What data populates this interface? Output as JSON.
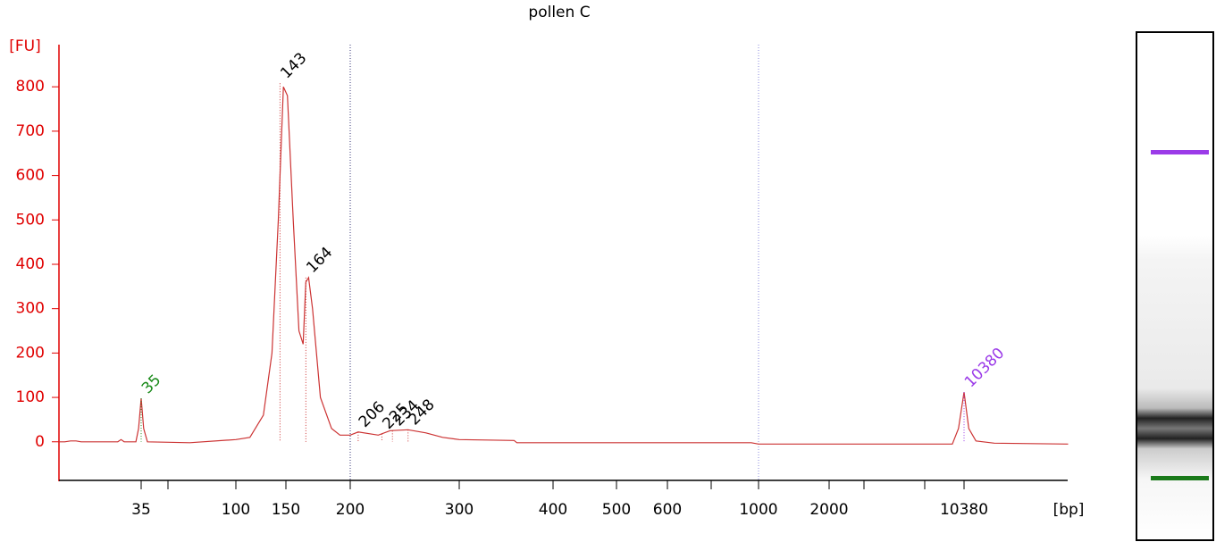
{
  "chart_data": {
    "type": "line",
    "title": "pollen C",
    "y_label": "[FU]",
    "x_label": "[bp]",
    "xscale": "bp",
    "xlim": [
      14,
      37000
    ],
    "ylim": [
      -87,
      895
    ],
    "yticks": [
      0,
      100,
      200,
      300,
      400,
      500,
      600,
      700,
      800
    ],
    "xticks": [
      35,
      100,
      150,
      200,
      300,
      400,
      500,
      600,
      1000,
      2000,
      10380
    ],
    "reference_lines": [
      200,
      1000
    ],
    "series": [
      {
        "name": "pollen C",
        "color": "#cc3333",
        "x": [
          14,
          15,
          16,
          17,
          18,
          27,
          28,
          29,
          33,
          34,
          35,
          36,
          37.5,
          60,
          100,
          112,
          125,
          134,
          141,
          147,
          151,
          155,
          159,
          162,
          164,
          166,
          169,
          175,
          184,
          191,
          200,
          206,
          222,
          232,
          248,
          265,
          282,
          300,
          355,
          358,
          960,
          1000,
          9000,
          9700,
          10380,
          11000,
          12000,
          15000,
          37000
        ],
        "values": [
          0,
          0,
          2,
          2,
          0,
          0,
          5,
          0,
          0,
          30,
          98,
          30,
          0,
          -2,
          5,
          10,
          60,
          200,
          500,
          800,
          780,
          500,
          250,
          220,
          360,
          370,
          300,
          100,
          30,
          15,
          15,
          22,
          15,
          25,
          27,
          20,
          10,
          5,
          3,
          -2,
          -2,
          -5,
          -5,
          30,
          112,
          30,
          2,
          -3,
          -5
        ]
      }
    ],
    "peaks": [
      {
        "size": 35,
        "fu": 98,
        "color": "#1a8a1a"
      },
      {
        "size": 143,
        "fu": 808,
        "color": "#000000"
      },
      {
        "size": 164,
        "fu": 370,
        "color": "#000000"
      },
      {
        "size": 206,
        "fu": 22,
        "color": "#000000"
      },
      {
        "size": 225,
        "fu": 18,
        "color": "#000000"
      },
      {
        "size": 234,
        "fu": 25,
        "color": "#000000"
      },
      {
        "size": 248,
        "fu": 27,
        "color": "#000000"
      },
      {
        "size": 10380,
        "fu": 112,
        "color": "#9b3be8"
      }
    ]
  }
}
